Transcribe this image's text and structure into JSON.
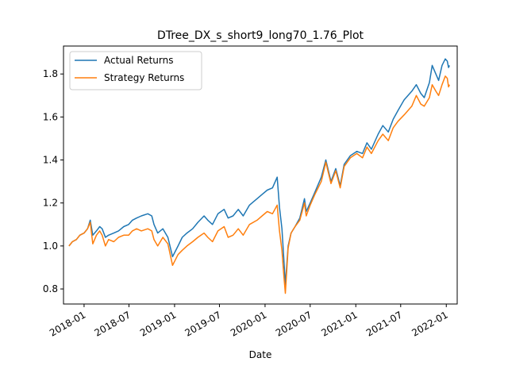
{
  "chart_data": {
    "type": "line",
    "title": "DTree_DX_s_short9_long70_1.76_Plot",
    "xlabel": "Date",
    "ylabel": "",
    "xlim": [
      "2017-10-10",
      "2022-02-14"
    ],
    "ylim": [
      0.73,
      1.93
    ],
    "x_ticks": [
      "2018-01",
      "2018-07",
      "2019-01",
      "2019-07",
      "2020-01",
      "2020-07",
      "2021-01",
      "2021-07",
      "2022-01"
    ],
    "y_ticks": [
      0.8,
      1.0,
      1.2,
      1.4,
      1.6,
      1.8
    ],
    "y_tick_labels": [
      "0.8",
      "1.0",
      "1.2",
      "1.4",
      "1.6",
      "1.8"
    ],
    "legend": {
      "location": "upper left",
      "entries": [
        "Actual Returns",
        "Strategy Returns"
      ]
    },
    "grid": false,
    "series": [
      {
        "name": "Actual Returns",
        "color": "#1f77b4",
        "points": [
          [
            "2017-11-01",
            1.0
          ],
          [
            "2017-11-15",
            1.02
          ],
          [
            "2017-12-01",
            1.03
          ],
          [
            "2017-12-15",
            1.05
          ],
          [
            "2018-01-01",
            1.06
          ],
          [
            "2018-01-15",
            1.08
          ],
          [
            "2018-01-26",
            1.12
          ],
          [
            "2018-02-05",
            1.05
          ],
          [
            "2018-02-20",
            1.07
          ],
          [
            "2018-03-05",
            1.09
          ],
          [
            "2018-03-15",
            1.08
          ],
          [
            "2018-03-28",
            1.04
          ],
          [
            "2018-04-10",
            1.05
          ],
          [
            "2018-05-01",
            1.06
          ],
          [
            "2018-05-20",
            1.07
          ],
          [
            "2018-06-10",
            1.09
          ],
          [
            "2018-06-30",
            1.1
          ],
          [
            "2018-07-15",
            1.12
          ],
          [
            "2018-08-01",
            1.13
          ],
          [
            "2018-08-20",
            1.14
          ],
          [
            "2018-09-15",
            1.15
          ],
          [
            "2018-10-01",
            1.14
          ],
          [
            "2018-10-10",
            1.1
          ],
          [
            "2018-10-25",
            1.06
          ],
          [
            "2018-11-15",
            1.08
          ],
          [
            "2018-12-05",
            1.04
          ],
          [
            "2018-12-24",
            0.95
          ],
          [
            "2019-01-15",
            1.0
          ],
          [
            "2019-02-01",
            1.04
          ],
          [
            "2019-02-20",
            1.06
          ],
          [
            "2019-03-15",
            1.08
          ],
          [
            "2019-04-05",
            1.11
          ],
          [
            "2019-04-30",
            1.14
          ],
          [
            "2019-05-15",
            1.12
          ],
          [
            "2019-06-03",
            1.1
          ],
          [
            "2019-06-25",
            1.15
          ],
          [
            "2019-07-20",
            1.17
          ],
          [
            "2019-08-05",
            1.13
          ],
          [
            "2019-08-25",
            1.14
          ],
          [
            "2019-09-15",
            1.17
          ],
          [
            "2019-10-05",
            1.14
          ],
          [
            "2019-10-30",
            1.19
          ],
          [
            "2019-11-30",
            1.22
          ],
          [
            "2019-12-20",
            1.24
          ],
          [
            "2020-01-10",
            1.26
          ],
          [
            "2020-01-31",
            1.27
          ],
          [
            "2020-02-19",
            1.32
          ],
          [
            "2020-02-28",
            1.18
          ],
          [
            "2020-03-09",
            1.08
          ],
          [
            "2020-03-16",
            0.95
          ],
          [
            "2020-03-23",
            0.82
          ],
          [
            "2020-04-03",
            1.0
          ],
          [
            "2020-04-15",
            1.06
          ],
          [
            "2020-05-01",
            1.09
          ],
          [
            "2020-05-20",
            1.13
          ],
          [
            "2020-06-08",
            1.22
          ],
          [
            "2020-06-15",
            1.16
          ],
          [
            "2020-07-01",
            1.2
          ],
          [
            "2020-07-20",
            1.25
          ],
          [
            "2020-08-15",
            1.32
          ],
          [
            "2020-09-02",
            1.4
          ],
          [
            "2020-09-23",
            1.3
          ],
          [
            "2020-10-12",
            1.36
          ],
          [
            "2020-10-30",
            1.28
          ],
          [
            "2020-11-15",
            1.38
          ],
          [
            "2020-12-10",
            1.42
          ],
          [
            "2021-01-05",
            1.44
          ],
          [
            "2021-01-28",
            1.43
          ],
          [
            "2021-02-15",
            1.48
          ],
          [
            "2021-03-05",
            1.45
          ],
          [
            "2021-04-01",
            1.52
          ],
          [
            "2021-04-20",
            1.56
          ],
          [
            "2021-05-12",
            1.53
          ],
          [
            "2021-06-01",
            1.59
          ],
          [
            "2021-06-20",
            1.63
          ],
          [
            "2021-07-15",
            1.68
          ],
          [
            "2021-08-15",
            1.72
          ],
          [
            "2021-09-02",
            1.75
          ],
          [
            "2021-09-20",
            1.71
          ],
          [
            "2021-10-04",
            1.69
          ],
          [
            "2021-10-25",
            1.76
          ],
          [
            "2021-11-05",
            1.84
          ],
          [
            "2021-11-20",
            1.8
          ],
          [
            "2021-12-01",
            1.77
          ],
          [
            "2021-12-15",
            1.84
          ],
          [
            "2021-12-28",
            1.87
          ],
          [
            "2022-01-05",
            1.86
          ],
          [
            "2022-01-10",
            1.83
          ],
          [
            "2022-01-14",
            1.84
          ]
        ]
      },
      {
        "name": "Strategy Returns",
        "color": "#ff7f0e",
        "points": [
          [
            "2017-11-01",
            1.0
          ],
          [
            "2017-11-15",
            1.02
          ],
          [
            "2017-12-01",
            1.03
          ],
          [
            "2017-12-15",
            1.05
          ],
          [
            "2018-01-01",
            1.06
          ],
          [
            "2018-01-15",
            1.08
          ],
          [
            "2018-01-26",
            1.11
          ],
          [
            "2018-02-05",
            1.01
          ],
          [
            "2018-02-20",
            1.05
          ],
          [
            "2018-03-05",
            1.07
          ],
          [
            "2018-03-15",
            1.05
          ],
          [
            "2018-03-28",
            1.0
          ],
          [
            "2018-04-10",
            1.03
          ],
          [
            "2018-05-01",
            1.02
          ],
          [
            "2018-05-20",
            1.04
          ],
          [
            "2018-06-10",
            1.05
          ],
          [
            "2018-06-30",
            1.05
          ],
          [
            "2018-07-15",
            1.07
          ],
          [
            "2018-08-01",
            1.08
          ],
          [
            "2018-08-20",
            1.07
          ],
          [
            "2018-09-15",
            1.08
          ],
          [
            "2018-10-01",
            1.07
          ],
          [
            "2018-10-10",
            1.03
          ],
          [
            "2018-10-25",
            1.0
          ],
          [
            "2018-11-15",
            1.04
          ],
          [
            "2018-12-05",
            1.01
          ],
          [
            "2018-12-24",
            0.91
          ],
          [
            "2019-01-15",
            0.96
          ],
          [
            "2019-02-01",
            0.98
          ],
          [
            "2019-02-20",
            1.0
          ],
          [
            "2019-03-15",
            1.02
          ],
          [
            "2019-04-05",
            1.04
          ],
          [
            "2019-04-30",
            1.06
          ],
          [
            "2019-05-15",
            1.04
          ],
          [
            "2019-06-03",
            1.02
          ],
          [
            "2019-06-25",
            1.07
          ],
          [
            "2019-07-20",
            1.09
          ],
          [
            "2019-08-05",
            1.04
          ],
          [
            "2019-08-25",
            1.05
          ],
          [
            "2019-09-15",
            1.08
          ],
          [
            "2019-10-05",
            1.05
          ],
          [
            "2019-10-30",
            1.1
          ],
          [
            "2019-11-30",
            1.12
          ],
          [
            "2019-12-20",
            1.14
          ],
          [
            "2020-01-10",
            1.16
          ],
          [
            "2020-01-31",
            1.15
          ],
          [
            "2020-02-19",
            1.19
          ],
          [
            "2020-02-28",
            1.07
          ],
          [
            "2020-03-09",
            0.98
          ],
          [
            "2020-03-16",
            0.87
          ],
          [
            "2020-03-23",
            0.78
          ],
          [
            "2020-04-03",
            0.99
          ],
          [
            "2020-04-15",
            1.06
          ],
          [
            "2020-05-01",
            1.09
          ],
          [
            "2020-05-20",
            1.12
          ],
          [
            "2020-06-08",
            1.2
          ],
          [
            "2020-06-15",
            1.14
          ],
          [
            "2020-07-01",
            1.19
          ],
          [
            "2020-07-20",
            1.24
          ],
          [
            "2020-08-15",
            1.3
          ],
          [
            "2020-09-02",
            1.39
          ],
          [
            "2020-09-23",
            1.29
          ],
          [
            "2020-10-12",
            1.35
          ],
          [
            "2020-10-30",
            1.27
          ],
          [
            "2020-11-15",
            1.37
          ],
          [
            "2020-12-10",
            1.41
          ],
          [
            "2021-01-05",
            1.43
          ],
          [
            "2021-01-28",
            1.41
          ],
          [
            "2021-02-15",
            1.46
          ],
          [
            "2021-03-05",
            1.43
          ],
          [
            "2021-04-01",
            1.49
          ],
          [
            "2021-04-20",
            1.52
          ],
          [
            "2021-05-12",
            1.49
          ],
          [
            "2021-06-01",
            1.55
          ],
          [
            "2021-06-20",
            1.58
          ],
          [
            "2021-07-15",
            1.61
          ],
          [
            "2021-08-15",
            1.65
          ],
          [
            "2021-09-02",
            1.7
          ],
          [
            "2021-09-20",
            1.66
          ],
          [
            "2021-10-04",
            1.65
          ],
          [
            "2021-10-25",
            1.69
          ],
          [
            "2021-11-05",
            1.75
          ],
          [
            "2021-11-20",
            1.72
          ],
          [
            "2021-12-01",
            1.7
          ],
          [
            "2021-12-15",
            1.75
          ],
          [
            "2021-12-28",
            1.79
          ],
          [
            "2022-01-05",
            1.78
          ],
          [
            "2022-01-10",
            1.74
          ],
          [
            "2022-01-14",
            1.75
          ]
        ]
      }
    ]
  }
}
